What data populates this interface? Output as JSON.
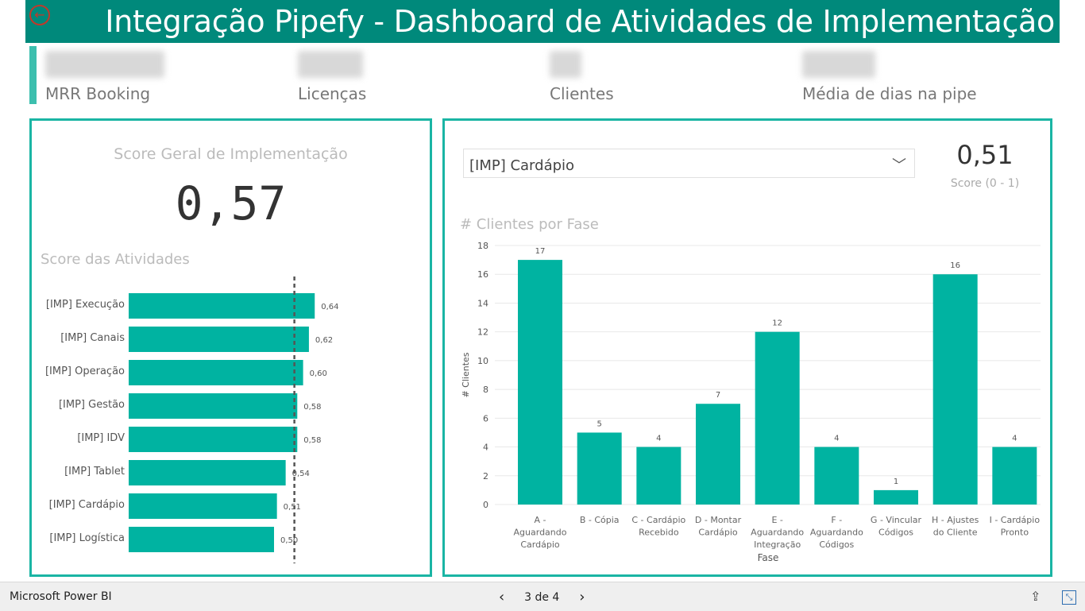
{
  "header": {
    "title": "Integração Pipefy - Dashboard de Atividades de Implementação"
  },
  "kpis": [
    {
      "label": "MRR Booking"
    },
    {
      "label": "Licenças"
    },
    {
      "label": "Clientes"
    },
    {
      "label": "Média de dias na pipe"
    }
  ],
  "left_panel": {
    "score_title": "Score Geral de Implementação",
    "score_value": "0,57",
    "section_title": "Score das Atividades"
  },
  "right_panel": {
    "dropdown_value": "[IMP] Cardápio",
    "score_value": "0,51",
    "score_label": "Score (0 - 1)",
    "chart_title": "# Clientes por Fase"
  },
  "chart_data": [
    {
      "type": "bar",
      "orientation": "horizontal",
      "title": "Score das Atividades",
      "categories": [
        "[IMP] Execução",
        "[IMP] Canais",
        "[IMP] Operação",
        "[IMP] Gestão",
        "[IMP] IDV",
        "[IMP] Tablet",
        "[IMP] Cardápio",
        "[IMP] Logística"
      ],
      "values": [
        0.64,
        0.62,
        0.6,
        0.58,
        0.58,
        0.54,
        0.51,
        0.5
      ],
      "value_labels": [
        "0,64",
        "0,62",
        "0,60",
        "0,58",
        "0,58",
        "0,54",
        "0,51",
        "0,50"
      ],
      "reference_line": 0.57,
      "color": "#00b3a1"
    },
    {
      "type": "bar",
      "title": "# Clientes por Fase",
      "xlabel": "Fase",
      "ylabel": "# Clientes",
      "categories": [
        [
          "A -",
          "Aguardando",
          "Cardápio"
        ],
        [
          "B - Cópia"
        ],
        [
          "C - Cardápio",
          "Recebido"
        ],
        [
          "D - Montar",
          "Cardápio"
        ],
        [
          "E -",
          "Aguardando",
          "Integração"
        ],
        [
          "F -",
          "Aguardando",
          "Códigos"
        ],
        [
          "G - Vincular",
          "Códigos"
        ],
        [
          "H - Ajustes",
          "do Cliente"
        ],
        [
          "I - Cardápio",
          "Pronto"
        ]
      ],
      "values": [
        17,
        5,
        4,
        7,
        12,
        4,
        1,
        16,
        4
      ],
      "ylim": [
        0,
        18
      ],
      "yticks": [
        0,
        2,
        4,
        6,
        8,
        10,
        12,
        14,
        16,
        18
      ],
      "grid": true,
      "color": "#00b3a1"
    }
  ],
  "footer": {
    "brand": "Microsoft Power BI",
    "page_indicator": "3 de 4"
  },
  "colors": {
    "accent": "#00897b",
    "bar": "#00b3a1",
    "panel_border": "#1ab5a4"
  }
}
